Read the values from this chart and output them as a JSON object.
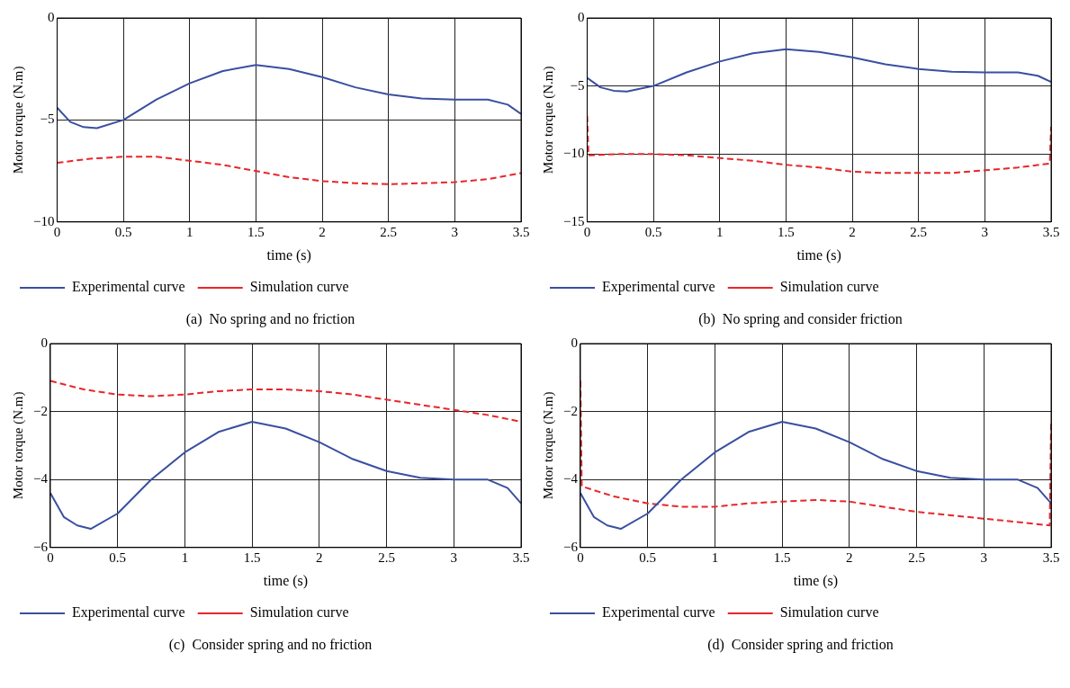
{
  "chart_data": [
    {
      "type": "line",
      "xlabel": "time (s)",
      "ylabel": "Motor torque (N.m)",
      "xlim": [
        0,
        3.5
      ],
      "xticks": [
        0,
        0.5,
        1,
        1.5,
        2,
        2.5,
        3,
        3.5
      ],
      "ylim": [
        -10,
        0
      ],
      "yticks": [
        -10,
        -5,
        0
      ],
      "grid": true,
      "legend": "bottom",
      "annotations": [
        "(a)  No spring and no friction"
      ],
      "series": [
        {
          "name": "Experimental curve",
          "color": "#3a4fa0",
          "line_style": "solid",
          "x": [
            0,
            0.1,
            0.2,
            0.3,
            0.5,
            0.75,
            1,
            1.25,
            1.5,
            1.75,
            2,
            2.25,
            2.5,
            2.75,
            3,
            3.25,
            3.4,
            3.5
          ],
          "values": [
            -4.4,
            -5.1,
            -5.35,
            -5.4,
            -5.0,
            -4.0,
            -3.2,
            -2.6,
            -2.3,
            -2.5,
            -2.9,
            -3.4,
            -3.75,
            -3.95,
            -4.0,
            -4.0,
            -4.25,
            -4.7
          ]
        },
        {
          "name": "Simulation curve",
          "color": "#e8262b",
          "line_style": "dashed",
          "x": [
            0,
            0.25,
            0.5,
            0.75,
            1,
            1.25,
            1.5,
            1.75,
            2,
            2.25,
            2.5,
            2.75,
            3,
            3.25,
            3.5
          ],
          "values": [
            -7.1,
            -6.9,
            -6.8,
            -6.8,
            -7.0,
            -7.2,
            -7.5,
            -7.8,
            -8.0,
            -8.1,
            -8.15,
            -8.1,
            -8.05,
            -7.9,
            -7.6
          ]
        }
      ]
    },
    {
      "type": "line",
      "xlabel": "time (s)",
      "ylabel": "Motor torque (N.m)",
      "xlim": [
        0,
        3.5
      ],
      "xticks": [
        0,
        0.5,
        1,
        1.5,
        2,
        2.5,
        3,
        3.5
      ],
      "ylim": [
        -15,
        0
      ],
      "yticks": [
        -15,
        -10,
        -5,
        0
      ],
      "grid": true,
      "legend": "bottom",
      "annotations": [
        "(b)  No spring and consider friction"
      ],
      "series": [
        {
          "name": "Experimental curve",
          "color": "#3a4fa0",
          "line_style": "solid",
          "x": [
            0,
            0.1,
            0.2,
            0.3,
            0.5,
            0.75,
            1,
            1.25,
            1.5,
            1.75,
            2,
            2.25,
            2.5,
            2.75,
            3,
            3.25,
            3.4,
            3.5
          ],
          "values": [
            -4.4,
            -5.1,
            -5.35,
            -5.4,
            -5.0,
            -4.0,
            -3.2,
            -2.6,
            -2.3,
            -2.5,
            -2.9,
            -3.4,
            -3.75,
            -3.95,
            -4.0,
            -4.0,
            -4.25,
            -4.7
          ]
        },
        {
          "name": "Simulation curve",
          "color": "#e8262b",
          "line_style": "dashed",
          "x": [
            0,
            0.01,
            0.25,
            0.5,
            0.75,
            1,
            1.25,
            1.5,
            1.75,
            2,
            2.25,
            2.5,
            2.75,
            3,
            3.25,
            3.49,
            3.5
          ],
          "values": [
            -7.2,
            -10.1,
            -10.0,
            -10.0,
            -10.1,
            -10.3,
            -10.5,
            -10.8,
            -11.0,
            -11.3,
            -11.4,
            -11.4,
            -11.4,
            -11.2,
            -11.0,
            -10.7,
            -8.0
          ]
        }
      ]
    },
    {
      "type": "line",
      "xlabel": "time (s)",
      "ylabel": "Motor torque (N.m)",
      "xlim": [
        0,
        3.5
      ],
      "xticks": [
        0,
        0.5,
        1,
        1.5,
        2,
        2.5,
        3,
        3.5
      ],
      "ylim": [
        -6,
        0
      ],
      "yticks": [
        -6,
        -4,
        -2,
        0
      ],
      "grid": true,
      "legend": "bottom",
      "annotations": [
        "(c)  Consider spring and no friction"
      ],
      "series": [
        {
          "name": "Experimental curve",
          "color": "#3a4fa0",
          "line_style": "solid",
          "x": [
            0,
            0.1,
            0.2,
            0.3,
            0.5,
            0.75,
            1,
            1.25,
            1.5,
            1.75,
            2,
            2.25,
            2.5,
            2.75,
            3,
            3.25,
            3.4,
            3.5
          ],
          "values": [
            -4.4,
            -5.1,
            -5.35,
            -5.45,
            -5.0,
            -4.0,
            -3.2,
            -2.6,
            -2.3,
            -2.5,
            -2.9,
            -3.4,
            -3.75,
            -3.95,
            -4.0,
            -4.0,
            -4.25,
            -4.7
          ]
        },
        {
          "name": "Simulation curve",
          "color": "#e8262b",
          "line_style": "dashed",
          "x": [
            0,
            0.25,
            0.5,
            0.75,
            1,
            1.25,
            1.5,
            1.75,
            2,
            2.25,
            2.5,
            2.75,
            3,
            3.25,
            3.5
          ],
          "values": [
            -1.1,
            -1.35,
            -1.5,
            -1.55,
            -1.5,
            -1.4,
            -1.35,
            -1.35,
            -1.4,
            -1.5,
            -1.65,
            -1.8,
            -1.95,
            -2.1,
            -2.3
          ]
        }
      ]
    },
    {
      "type": "line",
      "xlabel": "time (s)",
      "ylabel": "Motor torque (N.m)",
      "xlim": [
        0,
        3.5
      ],
      "xticks": [
        0,
        0.5,
        1,
        1.5,
        2,
        2.5,
        3,
        3.5
      ],
      "ylim": [
        -6,
        0
      ],
      "yticks": [
        -6,
        -4,
        -2,
        0
      ],
      "grid": true,
      "legend": "bottom",
      "annotations": [
        "(d)  Consider spring and friction"
      ],
      "series": [
        {
          "name": "Experimental curve",
          "color": "#3a4fa0",
          "line_style": "solid",
          "x": [
            0,
            0.1,
            0.2,
            0.3,
            0.5,
            0.75,
            1,
            1.25,
            1.5,
            1.75,
            2,
            2.25,
            2.5,
            2.75,
            3,
            3.25,
            3.4,
            3.5
          ],
          "values": [
            -4.4,
            -5.1,
            -5.35,
            -5.45,
            -5.0,
            -4.0,
            -3.2,
            -2.6,
            -2.3,
            -2.5,
            -2.9,
            -3.4,
            -3.75,
            -3.95,
            -4.0,
            -4.0,
            -4.25,
            -4.7
          ]
        },
        {
          "name": "Simulation curve",
          "color": "#e8262b",
          "line_style": "dashed",
          "x": [
            0,
            0.01,
            0.25,
            0.5,
            0.75,
            1,
            1.25,
            1.5,
            1.75,
            2,
            2.25,
            2.5,
            2.75,
            3,
            3.25,
            3.49,
            3.5
          ],
          "values": [
            -1.1,
            -4.2,
            -4.5,
            -4.7,
            -4.8,
            -4.8,
            -4.7,
            -4.65,
            -4.6,
            -4.65,
            -4.8,
            -4.95,
            -5.05,
            -5.15,
            -5.25,
            -5.35,
            -2.3
          ]
        }
      ]
    }
  ]
}
